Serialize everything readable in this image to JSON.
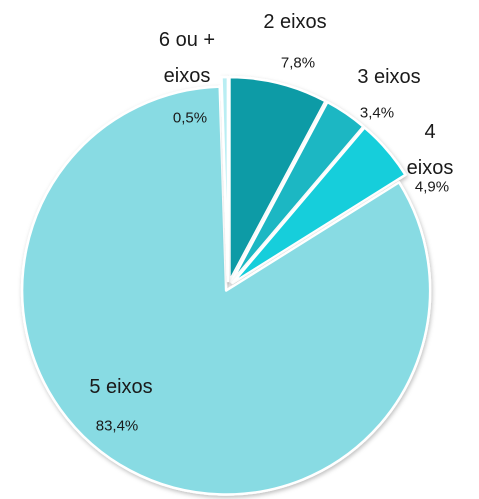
{
  "chart_data": {
    "type": "pie",
    "categories": [
      "2 eixos",
      "3 eixos",
      "4 eixos",
      "5 eixos",
      "6 ou + eixos"
    ],
    "values": [
      7.8,
      3.4,
      4.9,
      83.4,
      0.5
    ],
    "value_labels": [
      "7,8%",
      "3,4%",
      "4,9%",
      "83,4%",
      "0,5%"
    ],
    "colors": [
      "#0f9ba6",
      "#1db7c3",
      "#12cedb",
      "#88dbe3",
      "#b9eef3"
    ]
  }
}
